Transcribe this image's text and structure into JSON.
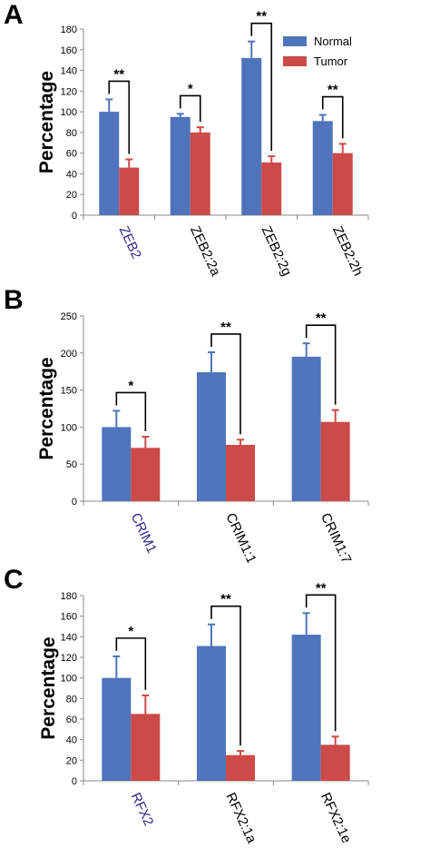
{
  "colors": {
    "normal": "#4f74bb",
    "tumor": "#cc4a47",
    "primary_label": "#2d2a8c"
  },
  "legend": {
    "normal": "Normal",
    "tumor": "Tumor"
  },
  "chart_data": [
    {
      "panel": "A",
      "type": "bar",
      "ylabel": "Percentage",
      "ylim": [
        0,
        180
      ],
      "yticks": [
        0,
        20,
        40,
        60,
        80,
        100,
        120,
        140,
        160,
        180
      ],
      "categories": [
        "ZEB2",
        "ZEB2:2a",
        "ZEB2:2g",
        "ZEB2:2h"
      ],
      "series": [
        {
          "name": "Normal",
          "values": [
            100,
            95,
            152,
            91
          ],
          "errors": [
            12,
            3,
            16,
            6
          ]
        },
        {
          "name": "Tumor",
          "values": [
            46,
            80,
            51,
            60
          ],
          "errors": [
            8,
            5,
            6,
            9
          ]
        }
      ],
      "significance": [
        "**",
        "*",
        "**",
        "**"
      ],
      "legend": "top-right"
    },
    {
      "panel": "B",
      "type": "bar",
      "ylabel": "Percentage",
      "ylim": [
        0,
        250
      ],
      "yticks": [
        0,
        50,
        100,
        150,
        200,
        250
      ],
      "categories": [
        "CRIM1",
        "CRIM1:1",
        "CRIM1:7"
      ],
      "series": [
        {
          "name": "Normal",
          "values": [
            100,
            174,
            195
          ],
          "errors": [
            22,
            27,
            18
          ]
        },
        {
          "name": "Tumor",
          "values": [
            72,
            76,
            107
          ],
          "errors": [
            15,
            7,
            16
          ]
        }
      ],
      "significance": [
        "*",
        "**",
        "**"
      ]
    },
    {
      "panel": "C",
      "type": "bar",
      "ylabel": "Percentage",
      "ylim": [
        0,
        180
      ],
      "yticks": [
        0,
        20,
        40,
        60,
        80,
        100,
        120,
        140,
        160,
        180
      ],
      "categories": [
        "RFX2",
        "RFX2:1a",
        "RFX2:1e"
      ],
      "series": [
        {
          "name": "Normal",
          "values": [
            100,
            131,
            142
          ],
          "errors": [
            21,
            21,
            21
          ]
        },
        {
          "name": "Tumor",
          "values": [
            65,
            25,
            35
          ],
          "errors": [
            18,
            4,
            8
          ]
        }
      ],
      "significance": [
        "*",
        "**",
        "**"
      ]
    }
  ]
}
